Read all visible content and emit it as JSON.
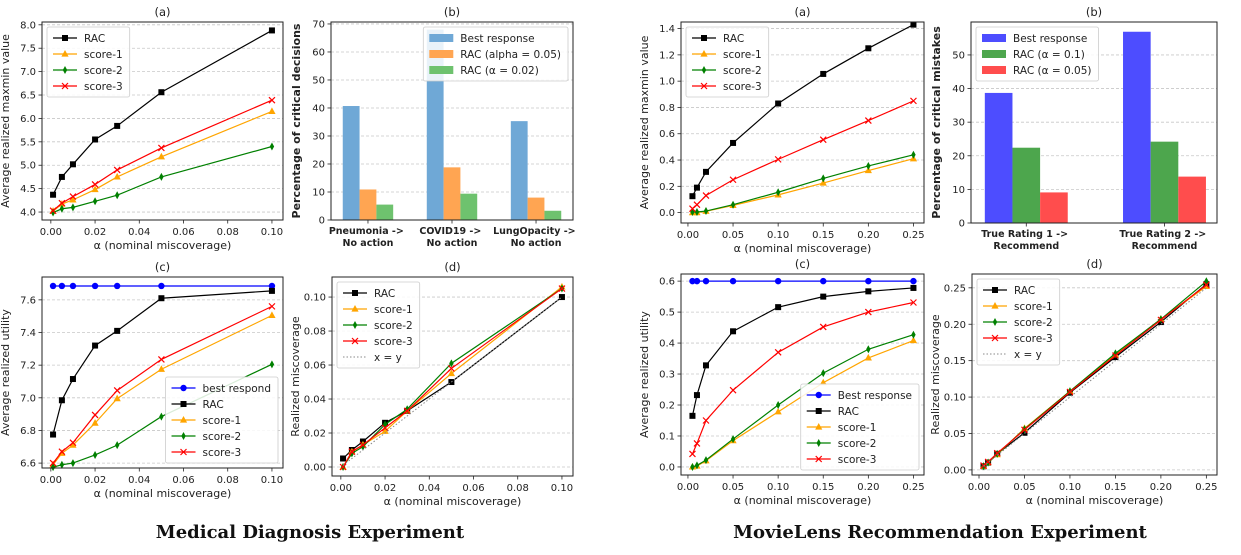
{
  "figure": {
    "left_caption": "Medical Diagnosis Experiment",
    "right_caption": "MovieLens Recommendation Experiment"
  },
  "chart_data": [
    {
      "id": "med-a",
      "type": "line",
      "title": "(a)",
      "xlabel": "α (nominal miscoverage)",
      "ylabel": "Average realized maxmin value",
      "xlim": [
        -0.004,
        0.105
      ],
      "ylim": [
        3.83,
        8.06
      ],
      "xticks": [
        "0.00",
        "0.02",
        "0.04",
        "0.06",
        "0.08",
        "0.10"
      ],
      "yticks": [
        "4.0",
        "4.5",
        "5.0",
        "5.5",
        "6.0",
        "6.5",
        "7.0",
        "7.5",
        "8.0"
      ],
      "grid": "y",
      "legend": "upper-left",
      "x": [
        0.001,
        0.005,
        0.01,
        0.02,
        0.03,
        0.05,
        0.1
      ],
      "series": [
        {
          "name": "RAC",
          "color": "#000000",
          "marker": "square",
          "values": [
            4.37,
            4.75,
            5.02,
            5.55,
            5.84,
            6.56,
            7.88
          ]
        },
        {
          "name": "score-1",
          "color": "#FFA500",
          "marker": "triangle",
          "values": [
            4.02,
            4.17,
            4.26,
            4.48,
            4.75,
            5.18,
            6.15
          ]
        },
        {
          "name": "score-2",
          "color": "#008000",
          "marker": "thin-diamond",
          "values": [
            3.99,
            4.07,
            4.1,
            4.23,
            4.36,
            4.75,
            5.4
          ]
        },
        {
          "name": "score-3",
          "color": "#FF0000",
          "marker": "x",
          "values": [
            4.03,
            4.19,
            4.33,
            4.59,
            4.9,
            5.37,
            6.39
          ]
        }
      ]
    },
    {
      "id": "med-b",
      "type": "bar",
      "title": "(b)",
      "xlabel": "",
      "ylabel": "Percentage of critical decisions",
      "xlim": [
        -0.44,
        2.44
      ],
      "ylim": [
        0,
        70.7
      ],
      "bar_width": 0.2,
      "categories": [
        "Pneumonia -> No action",
        "COVID19 -> No action",
        "LungOpacity -> No action"
      ],
      "yticks": [
        "0",
        "10",
        "20",
        "30",
        "40",
        "50",
        "60",
        "70"
      ],
      "grid": "y",
      "legend": "upper-right",
      "series": [
        {
          "name": "Best response",
          "color": "#6fa8d6",
          "values": [
            40.7,
            68.0,
            35.3
          ]
        },
        {
          "name": "RAC (alpha = 0.05)",
          "color": "#ffa552",
          "values": [
            10.9,
            18.8,
            8.0
          ]
        },
        {
          "name": "RAC (α = 0.02)",
          "color": "#6ec26e",
          "values": [
            5.5,
            9.4,
            3.3
          ]
        }
      ]
    },
    {
      "id": "med-c",
      "type": "line",
      "title": "(c)",
      "xlabel": "α (nominal miscoverage)",
      "ylabel": "Average realized utility",
      "xlim": [
        -0.004,
        0.105
      ],
      "ylim": [
        6.57,
        7.74
      ],
      "xticks": [
        "0.00",
        "0.02",
        "0.04",
        "0.06",
        "0.08",
        "0.10"
      ],
      "yticks": [
        "6.6",
        "6.8",
        "7.0",
        "7.2",
        "7.4",
        "7.6"
      ],
      "grid": "y",
      "legend": "lower-right",
      "x": [
        0.001,
        0.005,
        0.01,
        0.02,
        0.03,
        0.05,
        0.1
      ],
      "series": [
        {
          "name": "best respond",
          "color": "#0000FF",
          "marker": "circle",
          "values": [
            7.685,
            7.685,
            7.685,
            7.685,
            7.685,
            7.685,
            7.685
          ]
        },
        {
          "name": "RAC",
          "color": "#000000",
          "marker": "square",
          "values": [
            6.775,
            6.985,
            7.115,
            7.32,
            7.41,
            7.61,
            7.655
          ]
        },
        {
          "name": "score-1",
          "color": "#FFA500",
          "marker": "triangle",
          "values": [
            6.59,
            6.66,
            6.71,
            6.845,
            6.995,
            7.175,
            7.505
          ]
        },
        {
          "name": "score-2",
          "color": "#008000",
          "marker": "thin-diamond",
          "values": [
            6.575,
            6.59,
            6.6,
            6.65,
            6.71,
            6.885,
            7.205
          ]
        },
        {
          "name": "score-3",
          "color": "#FF0000",
          "marker": "x",
          "values": [
            6.6,
            6.67,
            6.725,
            6.895,
            7.045,
            7.235,
            7.56
          ]
        }
      ]
    },
    {
      "id": "med-d",
      "type": "line",
      "title": "(d)",
      "xlabel": "α (nominal miscoverage)",
      "ylabel": "Realized miscoverage",
      "xlim": [
        -0.004,
        0.105
      ],
      "ylim": [
        -0.0053,
        0.1118
      ],
      "xticks": [
        "0.00",
        "0.02",
        "0.04",
        "0.06",
        "0.08",
        "0.10"
      ],
      "yticks": [
        "0.00",
        "0.02",
        "0.04",
        "0.06",
        "0.08",
        "0.10"
      ],
      "grid": "y",
      "legend": "upper-left",
      "x": [
        0.001,
        0.005,
        0.01,
        0.02,
        0.03,
        0.05,
        0.1
      ],
      "series": [
        {
          "name": "RAC",
          "color": "#000000",
          "marker": "square",
          "values": [
            0.005,
            0.01,
            0.015,
            0.026,
            0.033,
            0.05,
            0.1
          ]
        },
        {
          "name": "score-1",
          "color": "#FFA500",
          "marker": "triangle",
          "values": [
            0.0,
            0.009,
            0.013,
            0.021,
            0.033,
            0.055,
            0.106
          ]
        },
        {
          "name": "score-2",
          "color": "#008000",
          "marker": "thin-diamond",
          "values": [
            0.0,
            0.008,
            0.012,
            0.025,
            0.034,
            0.061,
            0.105
          ]
        },
        {
          "name": "score-3",
          "color": "#FF0000",
          "marker": "x",
          "values": [
            0.0,
            0.009,
            0.013,
            0.023,
            0.033,
            0.058,
            0.105
          ]
        },
        {
          "name": "x = y",
          "color": "#888888",
          "marker": "none",
          "dotted": true,
          "values": [
            0.001,
            0.005,
            0.01,
            0.02,
            0.03,
            0.05,
            0.1
          ]
        }
      ]
    },
    {
      "id": "movie-a",
      "type": "line",
      "title": "(a)",
      "xlabel": "α (nominal miscoverage)",
      "ylabel": "Average realized maxmin value",
      "xlim": [
        -0.0077,
        0.2617
      ],
      "ylim": [
        -0.079,
        1.45
      ],
      "xticks": [
        "0.00",
        "0.05",
        "0.10",
        "0.15",
        "0.20",
        "0.25"
      ],
      "yticks": [
        "0.0",
        "0.2",
        "0.4",
        "0.6",
        "0.8",
        "1.0",
        "1.2",
        "1.4"
      ],
      "grid": "y",
      "legend": "upper-left",
      "x": [
        0.005,
        0.01,
        0.02,
        0.05,
        0.1,
        0.15,
        0.2,
        0.25
      ],
      "series": [
        {
          "name": "RAC",
          "color": "#000000",
          "marker": "square",
          "values": [
            0.125,
            0.19,
            0.31,
            0.53,
            0.83,
            1.055,
            1.25,
            1.43
          ]
        },
        {
          "name": "score-1",
          "color": "#FFA500",
          "marker": "triangle",
          "values": [
            0.0,
            0.0,
            0.01,
            0.055,
            0.135,
            0.225,
            0.32,
            0.41
          ]
        },
        {
          "name": "score-2",
          "color": "#008000",
          "marker": "thin-diamond",
          "values": [
            0.005,
            0.005,
            0.012,
            0.06,
            0.155,
            0.26,
            0.355,
            0.44
          ]
        },
        {
          "name": "score-3",
          "color": "#FF0000",
          "marker": "x",
          "values": [
            0.03,
            0.06,
            0.13,
            0.25,
            0.405,
            0.555,
            0.7,
            0.85
          ]
        }
      ]
    },
    {
      "id": "movie-b",
      "type": "bar",
      "title": "(b)",
      "xlabel": "",
      "ylabel": "Percentage of critical mistakes",
      "xlim": [
        -0.4,
        1.38
      ],
      "ylim": [
        0,
        59.8
      ],
      "bar_width": 0.2,
      "categories": [
        "True Rating 1 -> Recommend",
        "True Rating 2 -> Recommend"
      ],
      "yticks": [
        "0",
        "10",
        "20",
        "30",
        "40",
        "50"
      ],
      "grid": "y",
      "legend": "upper-left",
      "series": [
        {
          "name": "Best response",
          "color": "#4d4dff",
          "values": [
            38.7,
            56.9
          ]
        },
        {
          "name": "RAC (α = 0.1)",
          "color": "#4da64d",
          "values": [
            22.4,
            24.2
          ]
        },
        {
          "name": "RAC (α = 0.05)",
          "color": "#ff4d4d",
          "values": [
            9.1,
            13.8
          ]
        }
      ]
    },
    {
      "id": "movie-c",
      "type": "line",
      "title": "(c)",
      "xlabel": "α (nominal miscoverage)",
      "ylabel": "Average realized utility",
      "xlim": [
        -0.0077,
        0.2617
      ],
      "ylim": [
        -0.026,
        0.623
      ],
      "xticks": [
        "0.00",
        "0.05",
        "0.10",
        "0.15",
        "0.20",
        "0.25"
      ],
      "yticks": [
        "0.0",
        "0.1",
        "0.2",
        "0.3",
        "0.4",
        "0.5",
        "0.6"
      ],
      "grid": "y",
      "legend": "lower-right",
      "x": [
        0.005,
        0.01,
        0.02,
        0.05,
        0.1,
        0.15,
        0.2,
        0.25
      ],
      "series": [
        {
          "name": "Best response",
          "color": "#0000FF",
          "marker": "circle",
          "values": [
            0.6,
            0.6,
            0.6,
            0.6,
            0.6,
            0.6,
            0.6,
            0.6
          ]
        },
        {
          "name": "RAC",
          "color": "#000000",
          "marker": "square",
          "values": [
            0.165,
            0.232,
            0.328,
            0.438,
            0.516,
            0.55,
            0.567,
            0.578
          ]
        },
        {
          "name": "score-1",
          "color": "#FFA500",
          "marker": "triangle",
          "values": [
            0.0,
            0.003,
            0.02,
            0.085,
            0.178,
            0.272,
            0.352,
            0.408
          ]
        },
        {
          "name": "score-2",
          "color": "#008000",
          "marker": "thin-diamond",
          "values": [
            0.0,
            0.005,
            0.022,
            0.09,
            0.2,
            0.303,
            0.38,
            0.427
          ]
        },
        {
          "name": "score-3",
          "color": "#FF0000",
          "marker": "x",
          "values": [
            0.042,
            0.076,
            0.15,
            0.248,
            0.37,
            0.452,
            0.5,
            0.531
          ]
        }
      ]
    },
    {
      "id": "movie-d",
      "type": "line",
      "title": "(d)",
      "xlabel": "α (nominal miscoverage)",
      "ylabel": "Realized miscoverage",
      "xlim": [
        -0.0077,
        0.2617
      ],
      "ylim": [
        -0.007,
        0.269
      ],
      "xticks": [
        "0.00",
        "0.05",
        "0.10",
        "0.15",
        "0.20",
        "0.25"
      ],
      "yticks": [
        "0.00",
        "0.05",
        "0.10",
        "0.15",
        "0.20",
        "0.25"
      ],
      "grid": "y",
      "legend": "upper-left",
      "x": [
        0.005,
        0.01,
        0.02,
        0.05,
        0.1,
        0.15,
        0.2,
        0.25
      ],
      "series": [
        {
          "name": "RAC",
          "color": "#000000",
          "marker": "square",
          "values": [
            0.005,
            0.01,
            0.022,
            0.051,
            0.106,
            0.155,
            0.203,
            0.255
          ]
        },
        {
          "name": "score-1",
          "color": "#FFA500",
          "marker": "triangle",
          "values": [
            0.005,
            0.01,
            0.021,
            0.057,
            0.108,
            0.158,
            0.207,
            0.252
          ]
        },
        {
          "name": "score-2",
          "color": "#008000",
          "marker": "thin-diamond",
          "values": [
            0.005,
            0.01,
            0.022,
            0.056,
            0.108,
            0.16,
            0.207,
            0.259
          ]
        },
        {
          "name": "score-3",
          "color": "#FF0000",
          "marker": "x",
          "values": [
            0.006,
            0.011,
            0.023,
            0.055,
            0.107,
            0.157,
            0.206,
            0.254
          ]
        },
        {
          "name": "x = y",
          "color": "#888888",
          "marker": "none",
          "dotted": true,
          "values": [
            0.005,
            0.01,
            0.02,
            0.05,
            0.1,
            0.15,
            0.2,
            0.25
          ]
        }
      ]
    }
  ]
}
